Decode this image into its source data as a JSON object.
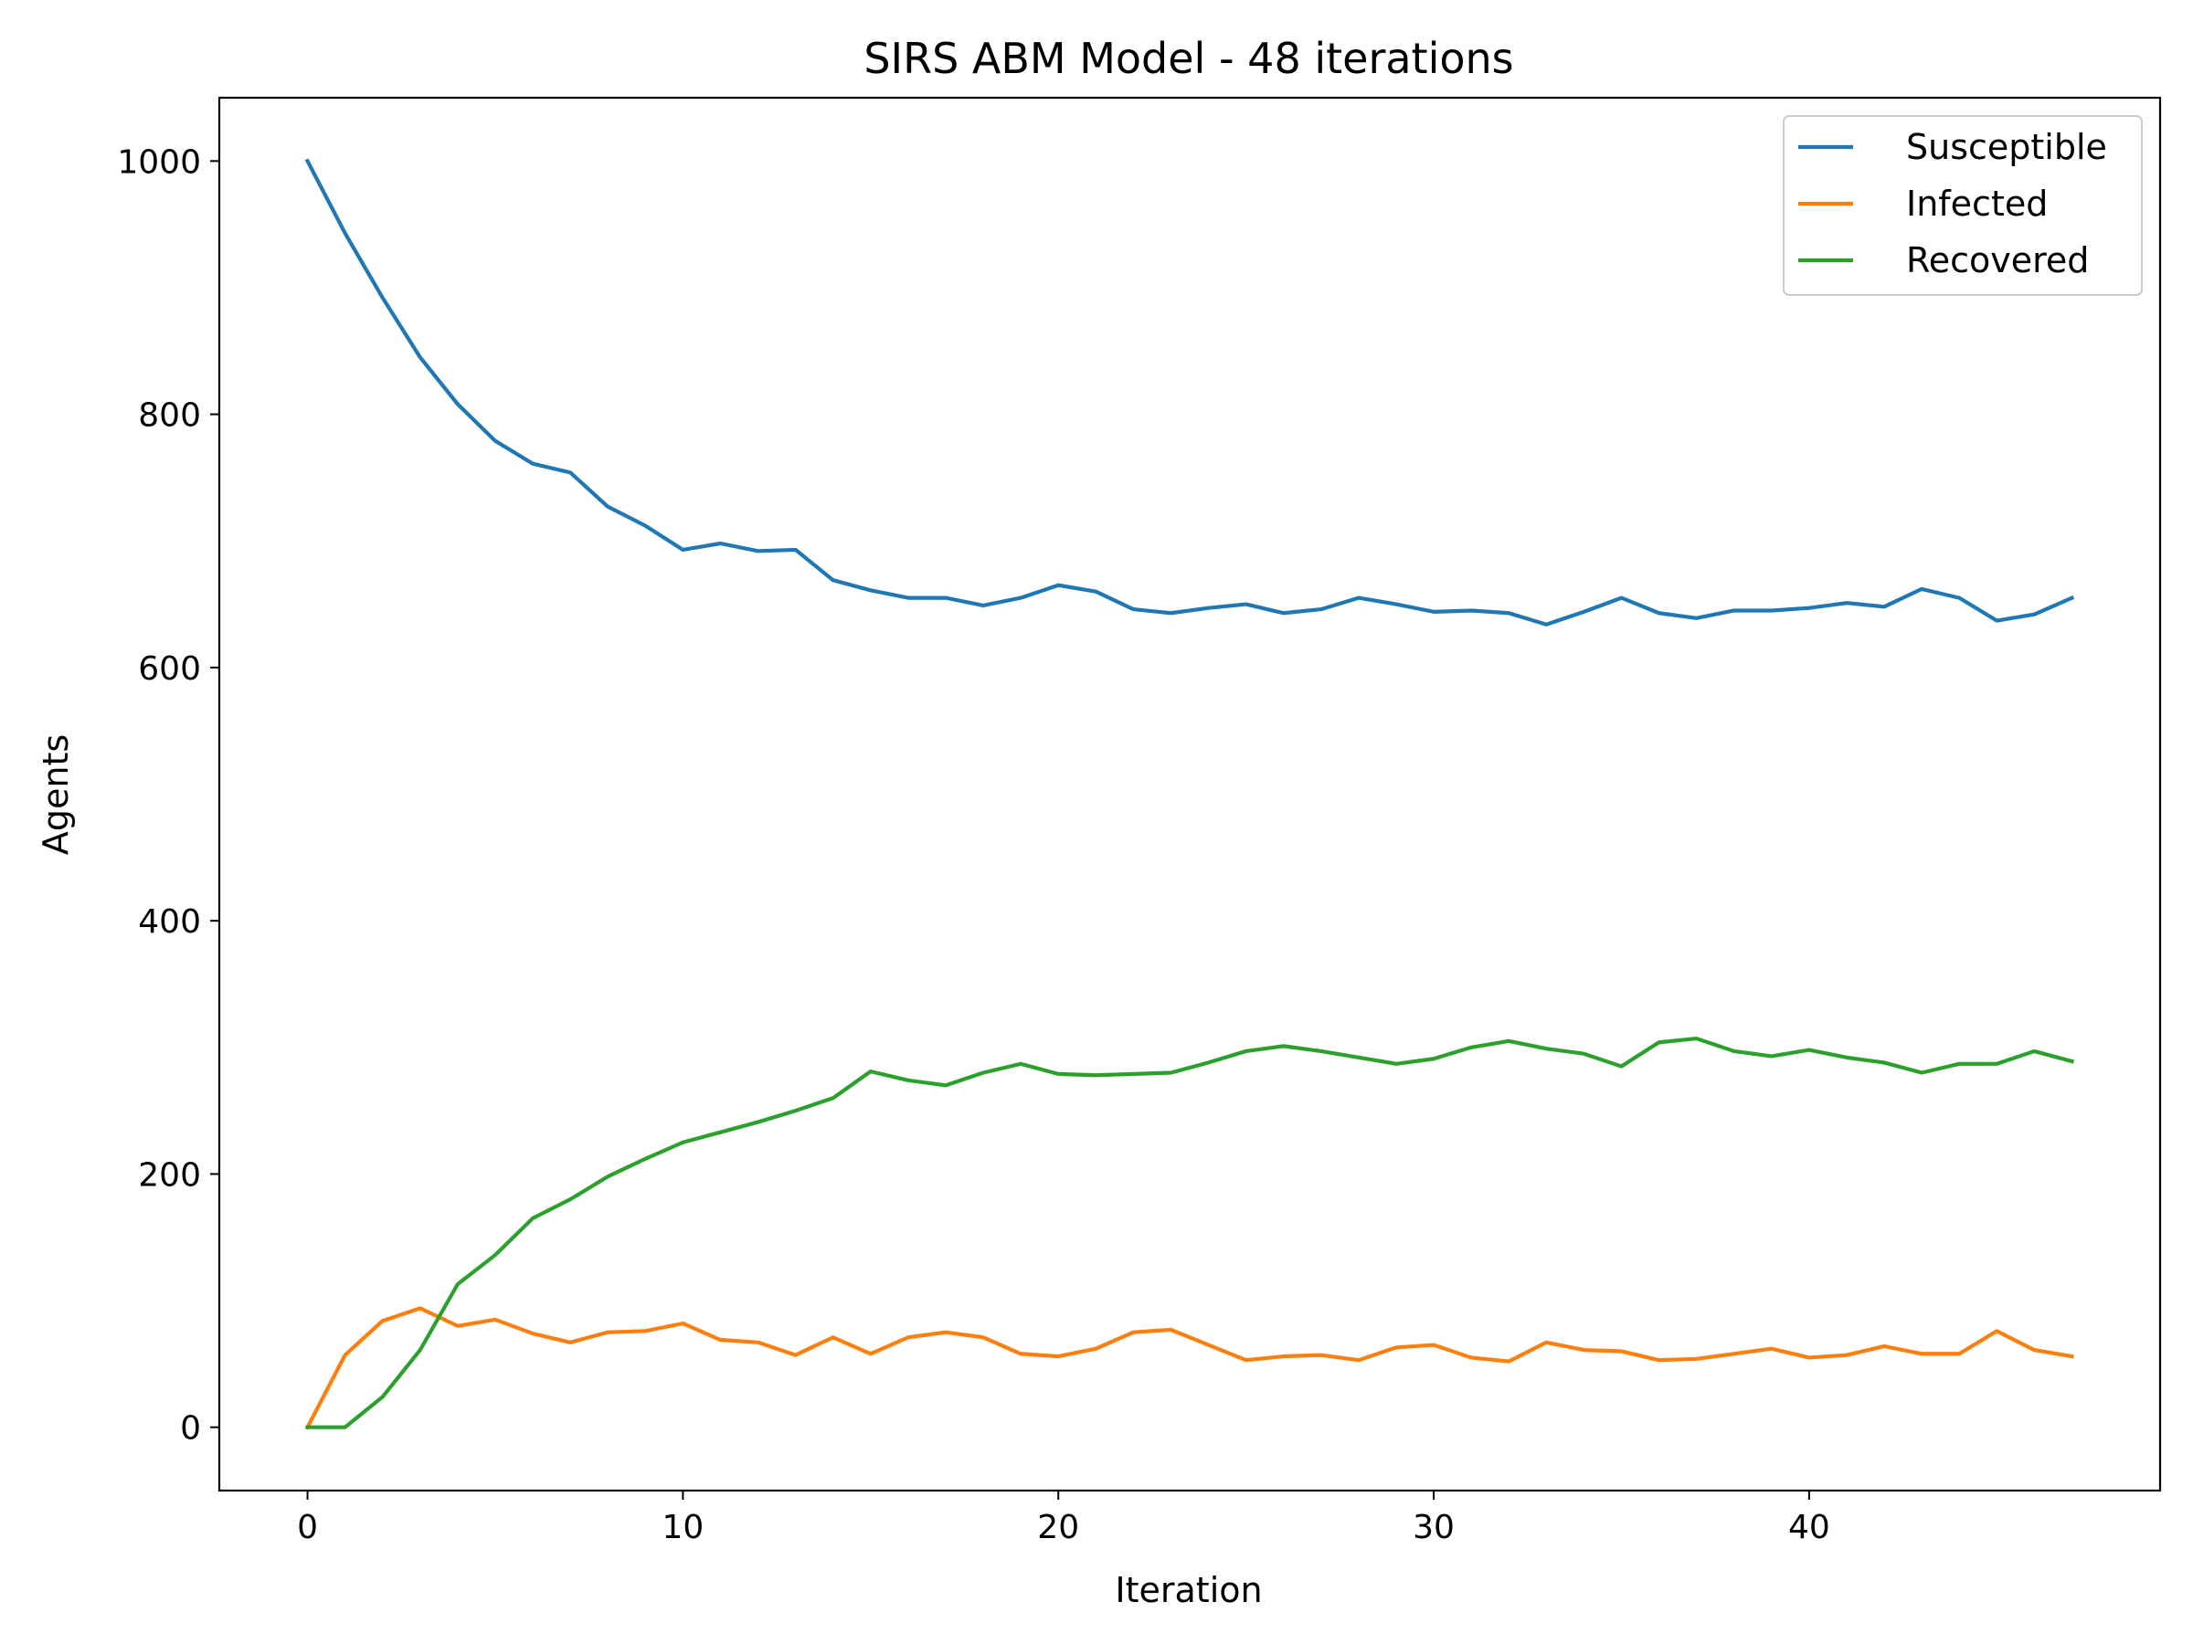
{
  "chart_data": {
    "type": "line",
    "title": "SIRS ABM Model - 48 iterations",
    "xlabel": "Iteration",
    "ylabel": "Agents",
    "xlim": [
      -2.35,
      49.35
    ],
    "ylim": [
      -50,
      1050
    ],
    "xticks": [
      0,
      10,
      20,
      30,
      40
    ],
    "yticks": [
      0,
      200,
      400,
      600,
      800,
      1000
    ],
    "grid": false,
    "legend_position": "top-right",
    "x": [
      0,
      1,
      2,
      3,
      4,
      5,
      6,
      7,
      8,
      9,
      10,
      11,
      12,
      13,
      14,
      15,
      16,
      17,
      18,
      19,
      20,
      21,
      22,
      23,
      24,
      25,
      26,
      27,
      28,
      29,
      30,
      31,
      32,
      33,
      34,
      35,
      36,
      37,
      38,
      39,
      40,
      41,
      42,
      43,
      44,
      45,
      46,
      47
    ],
    "series": [
      {
        "name": "Susceptible",
        "color": "#1f77b4",
        "values": [
          1000,
          943,
          892,
          845,
          808,
          779,
          761,
          754,
          727,
          712,
          693,
          698,
          692,
          693,
          669,
          661,
          655,
          655,
          649,
          655,
          665,
          660,
          646,
          643,
          647,
          650,
          643,
          646,
          655,
          650,
          644,
          645,
          643,
          634,
          644,
          655,
          643,
          639,
          645,
          645,
          647,
          651,
          648,
          662,
          655,
          637,
          642,
          655
        ]
      },
      {
        "name": "Infected",
        "color": "#ff7f0e",
        "values": [
          0,
          57,
          84,
          94,
          80,
          85,
          74,
          67,
          75,
          76,
          82,
          69,
          67,
          57,
          71,
          58,
          71,
          75,
          71,
          58,
          56,
          62,
          75,
          77,
          65,
          53,
          56,
          57,
          53,
          63,
          65,
          55,
          52,
          67,
          61,
          60,
          53,
          54,
          58,
          62,
          55,
          57,
          64,
          58,
          58,
          76,
          61,
          56
        ]
      },
      {
        "name": "Recovered",
        "color": "#2ca02c",
        "values": [
          0,
          0,
          24,
          61,
          113,
          136,
          165,
          180,
          198,
          212,
          225,
          233,
          241,
          250,
          260,
          281,
          274,
          270,
          280,
          287,
          279,
          278,
          279,
          280,
          288,
          297,
          301,
          297,
          292,
          287,
          291,
          300,
          305,
          299,
          295,
          285,
          304,
          307,
          297,
          293,
          298,
          292,
          288,
          280,
          287,
          287,
          297,
          289
        ]
      }
    ]
  }
}
